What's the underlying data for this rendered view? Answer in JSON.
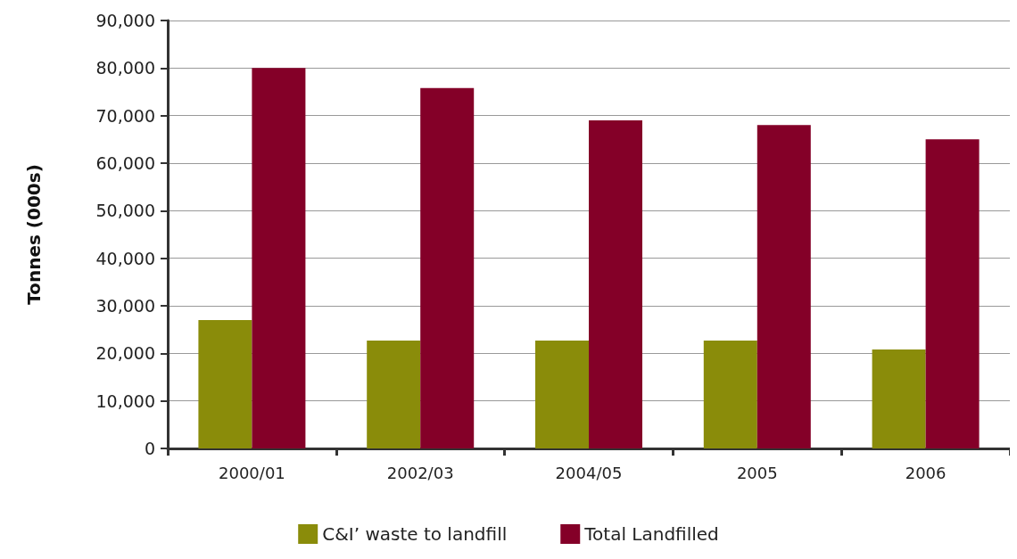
{
  "chart_data": {
    "type": "bar",
    "ylabel": "Tonnes (000s)",
    "categories": [
      "2000/01",
      "2002/03",
      "2004/05",
      "2005",
      "2006"
    ],
    "series": [
      {
        "name": "C&I’ waste to landfill",
        "color": "#8a8c0a",
        "values": [
          27000,
          22700,
          22700,
          22700,
          20800
        ]
      },
      {
        "name": "Total Landfilled",
        "color": "#840028",
        "values": [
          80000,
          75800,
          69000,
          68000,
          65000
        ]
      }
    ],
    "ylim": [
      0,
      90000
    ],
    "yticks": [
      0,
      {
        "value": 10000,
        "label": "10,000"
      },
      {
        "value": 20000,
        "label": "20,000"
      },
      {
        "value": 30000,
        "label": "30,000"
      },
      {
        "value": 40000,
        "label": "40,000"
      },
      {
        "value": 50000,
        "label": "50,000"
      },
      {
        "value": 60000,
        "label": "60,000"
      },
      {
        "value": 70000,
        "label": "70,000"
      },
      {
        "value": 80000,
        "label": "80,000"
      },
      {
        "value": 90000,
        "label": "90,000"
      }
    ],
    "grid": "y",
    "legend": "bottom"
  }
}
